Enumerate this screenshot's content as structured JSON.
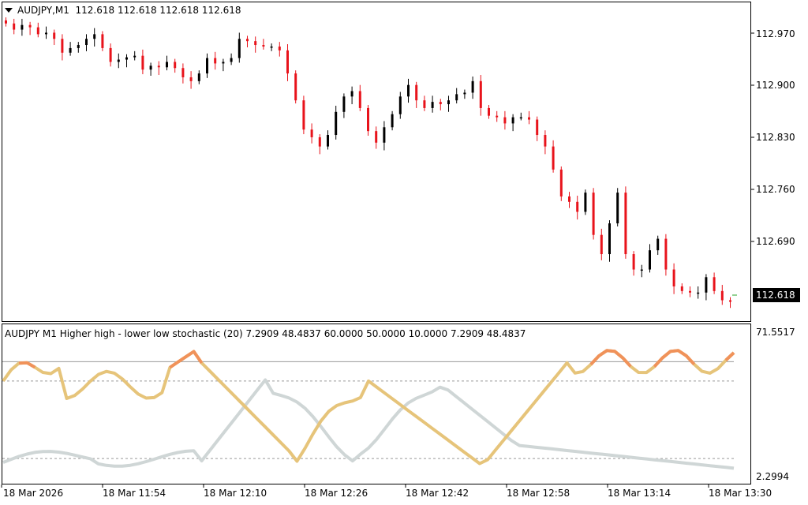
{
  "main_chart": {
    "symbol": "AUDJPY,M1",
    "ohlc": "112.618 112.618 112.618 112.618",
    "price_labels": [
      "112.970",
      "112.900",
      "112.830",
      "112.760",
      "112.690"
    ],
    "current_price": "112.618",
    "colors": {
      "bull": "#000000",
      "bear": "#e8131b"
    }
  },
  "indicator": {
    "title": "AUDJPY M1  Higher high - lower low stochastic (20) 7.2909 48.4837 60.0000 50.0000 10.0000 7.2909 48.4837",
    "max_label": "71.5517",
    "min_label": "2.2994",
    "colors": {
      "main": "#e6c47a",
      "signal": "#cfd6d6",
      "highlight": "#f0925a"
    }
  },
  "time_axis": [
    "18 Mar 2026",
    "18 Mar 11:54",
    "18 Mar 12:10",
    "18 Mar 12:26",
    "18 Mar 12:42",
    "18 Mar 12:58",
    "18 Mar 13:14",
    "18 Mar 13:30"
  ],
  "chart_data": {
    "type": "candlestick",
    "timeframe": "M1",
    "candles_close": [
      112.98,
      112.972,
      112.978,
      112.975,
      112.966,
      112.968,
      112.96,
      112.942,
      112.948,
      112.952,
      112.96,
      112.966,
      112.948,
      112.93,
      112.933,
      112.936,
      112.938,
      112.92,
      112.925,
      112.923,
      112.93,
      112.922,
      112.91,
      112.905,
      112.915,
      112.935,
      112.928,
      112.93,
      112.935,
      112.96,
      112.957,
      112.952,
      112.95,
      112.95,
      112.945,
      112.915,
      112.88,
      112.842,
      112.832,
      112.82,
      112.835,
      112.865,
      112.885,
      112.892,
      112.87,
      112.84,
      112.825,
      112.845,
      112.862,
      112.885,
      112.9,
      112.88,
      112.87,
      112.878,
      112.875,
      112.88,
      112.888,
      112.89,
      112.905,
      112.87,
      112.86,
      112.858,
      112.85,
      112.858,
      112.858,
      112.855,
      112.835,
      112.82,
      112.79,
      112.755,
      112.748,
      112.735,
      112.76,
      112.705,
      112.68,
      112.72,
      112.76,
      112.68,
      112.66,
      112.66,
      112.685,
      112.7,
      112.66,
      112.638,
      112.632,
      112.63,
      112.63,
      112.65,
      112.632,
      112.62,
      112.618
    ],
    "stochastic_main_range": [
      2.2994,
      71.5517
    ],
    "levels": [
      60.0,
      50.0,
      10.0
    ],
    "last_values": [
      7.2909,
      48.4837
    ]
  }
}
